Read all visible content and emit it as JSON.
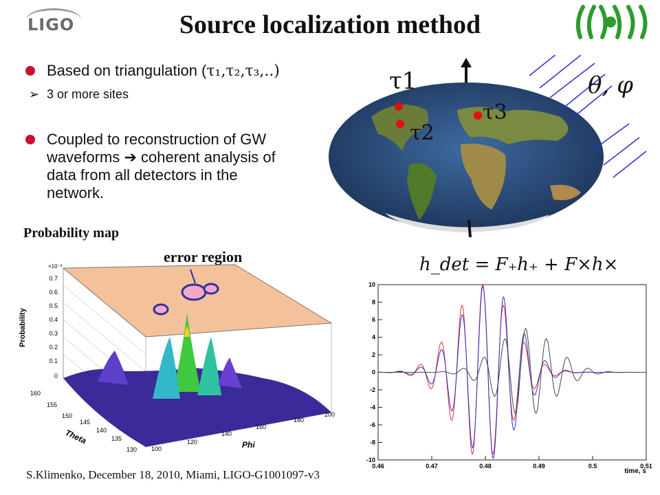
{
  "header": {
    "logo_text": "LIGO",
    "title": "Source localization method"
  },
  "bullets": [
    {
      "text": "Based on triangulation (",
      "math": "τ₁,τ₂,τ₃,..)",
      "sub": [
        {
          "text": "3 or more sites"
        }
      ]
    },
    {
      "line1": "Coupled to reconstruction of GW",
      "line2": "waveforms ➔ coherent analysis of",
      "line3": "data from all detectors in the",
      "line4": "network."
    }
  ],
  "globe": {
    "tau1": "τ1",
    "tau2": "τ2",
    "tau3": "τ3",
    "angles": "θ, φ",
    "colors": {
      "site_dot": "#e01010",
      "ocean": "#2a4a7a",
      "wave_arrow": "#2b2bd6"
    }
  },
  "probability_map": {
    "title": "Probability map",
    "annotation": "error region",
    "z_label": "Probability",
    "z_scale": "×10⁻³",
    "z_ticks": [
      "0.7",
      "0.6",
      "0.5",
      "0.4",
      "0.3",
      "0.2",
      "0.1",
      "0"
    ],
    "theta_label": "Theta",
    "theta_ticks": [
      "160",
      "155",
      "150",
      "145",
      "140",
      "135",
      "130"
    ],
    "phi_label": "Phi",
    "phi_ticks": [
      "100",
      "120",
      "140",
      "160",
      "180",
      "200"
    ]
  },
  "waveform": {
    "equation": "h_det = F₊h₊ + F×h×",
    "x_label": "time, s",
    "chart_data": {
      "type": "line",
      "x_ticks": [
        0.46,
        0.47,
        0.48,
        0.49,
        0.5,
        0.51
      ],
      "y_ticks": [
        10,
        8,
        6,
        4,
        2,
        0,
        -2,
        -4,
        -6,
        -8,
        -10
      ],
      "xlim": [
        0.46,
        0.51
      ],
      "ylim": [
        -10,
        10
      ],
      "series": [
        {
          "color": "#e03030",
          "peak": 10,
          "center": 0.4795,
          "phase": 0
        },
        {
          "color": "#3030d0",
          "peak": 10,
          "center": 0.4805,
          "phase": 1.57
        },
        {
          "color": "#444444",
          "peak": 5,
          "center": 0.4875,
          "phase": 0
        }
      ]
    }
  },
  "footer": {
    "text": "S.Klimenko, December 18, 2010, Miami, LIGO-G1001097-v3"
  }
}
